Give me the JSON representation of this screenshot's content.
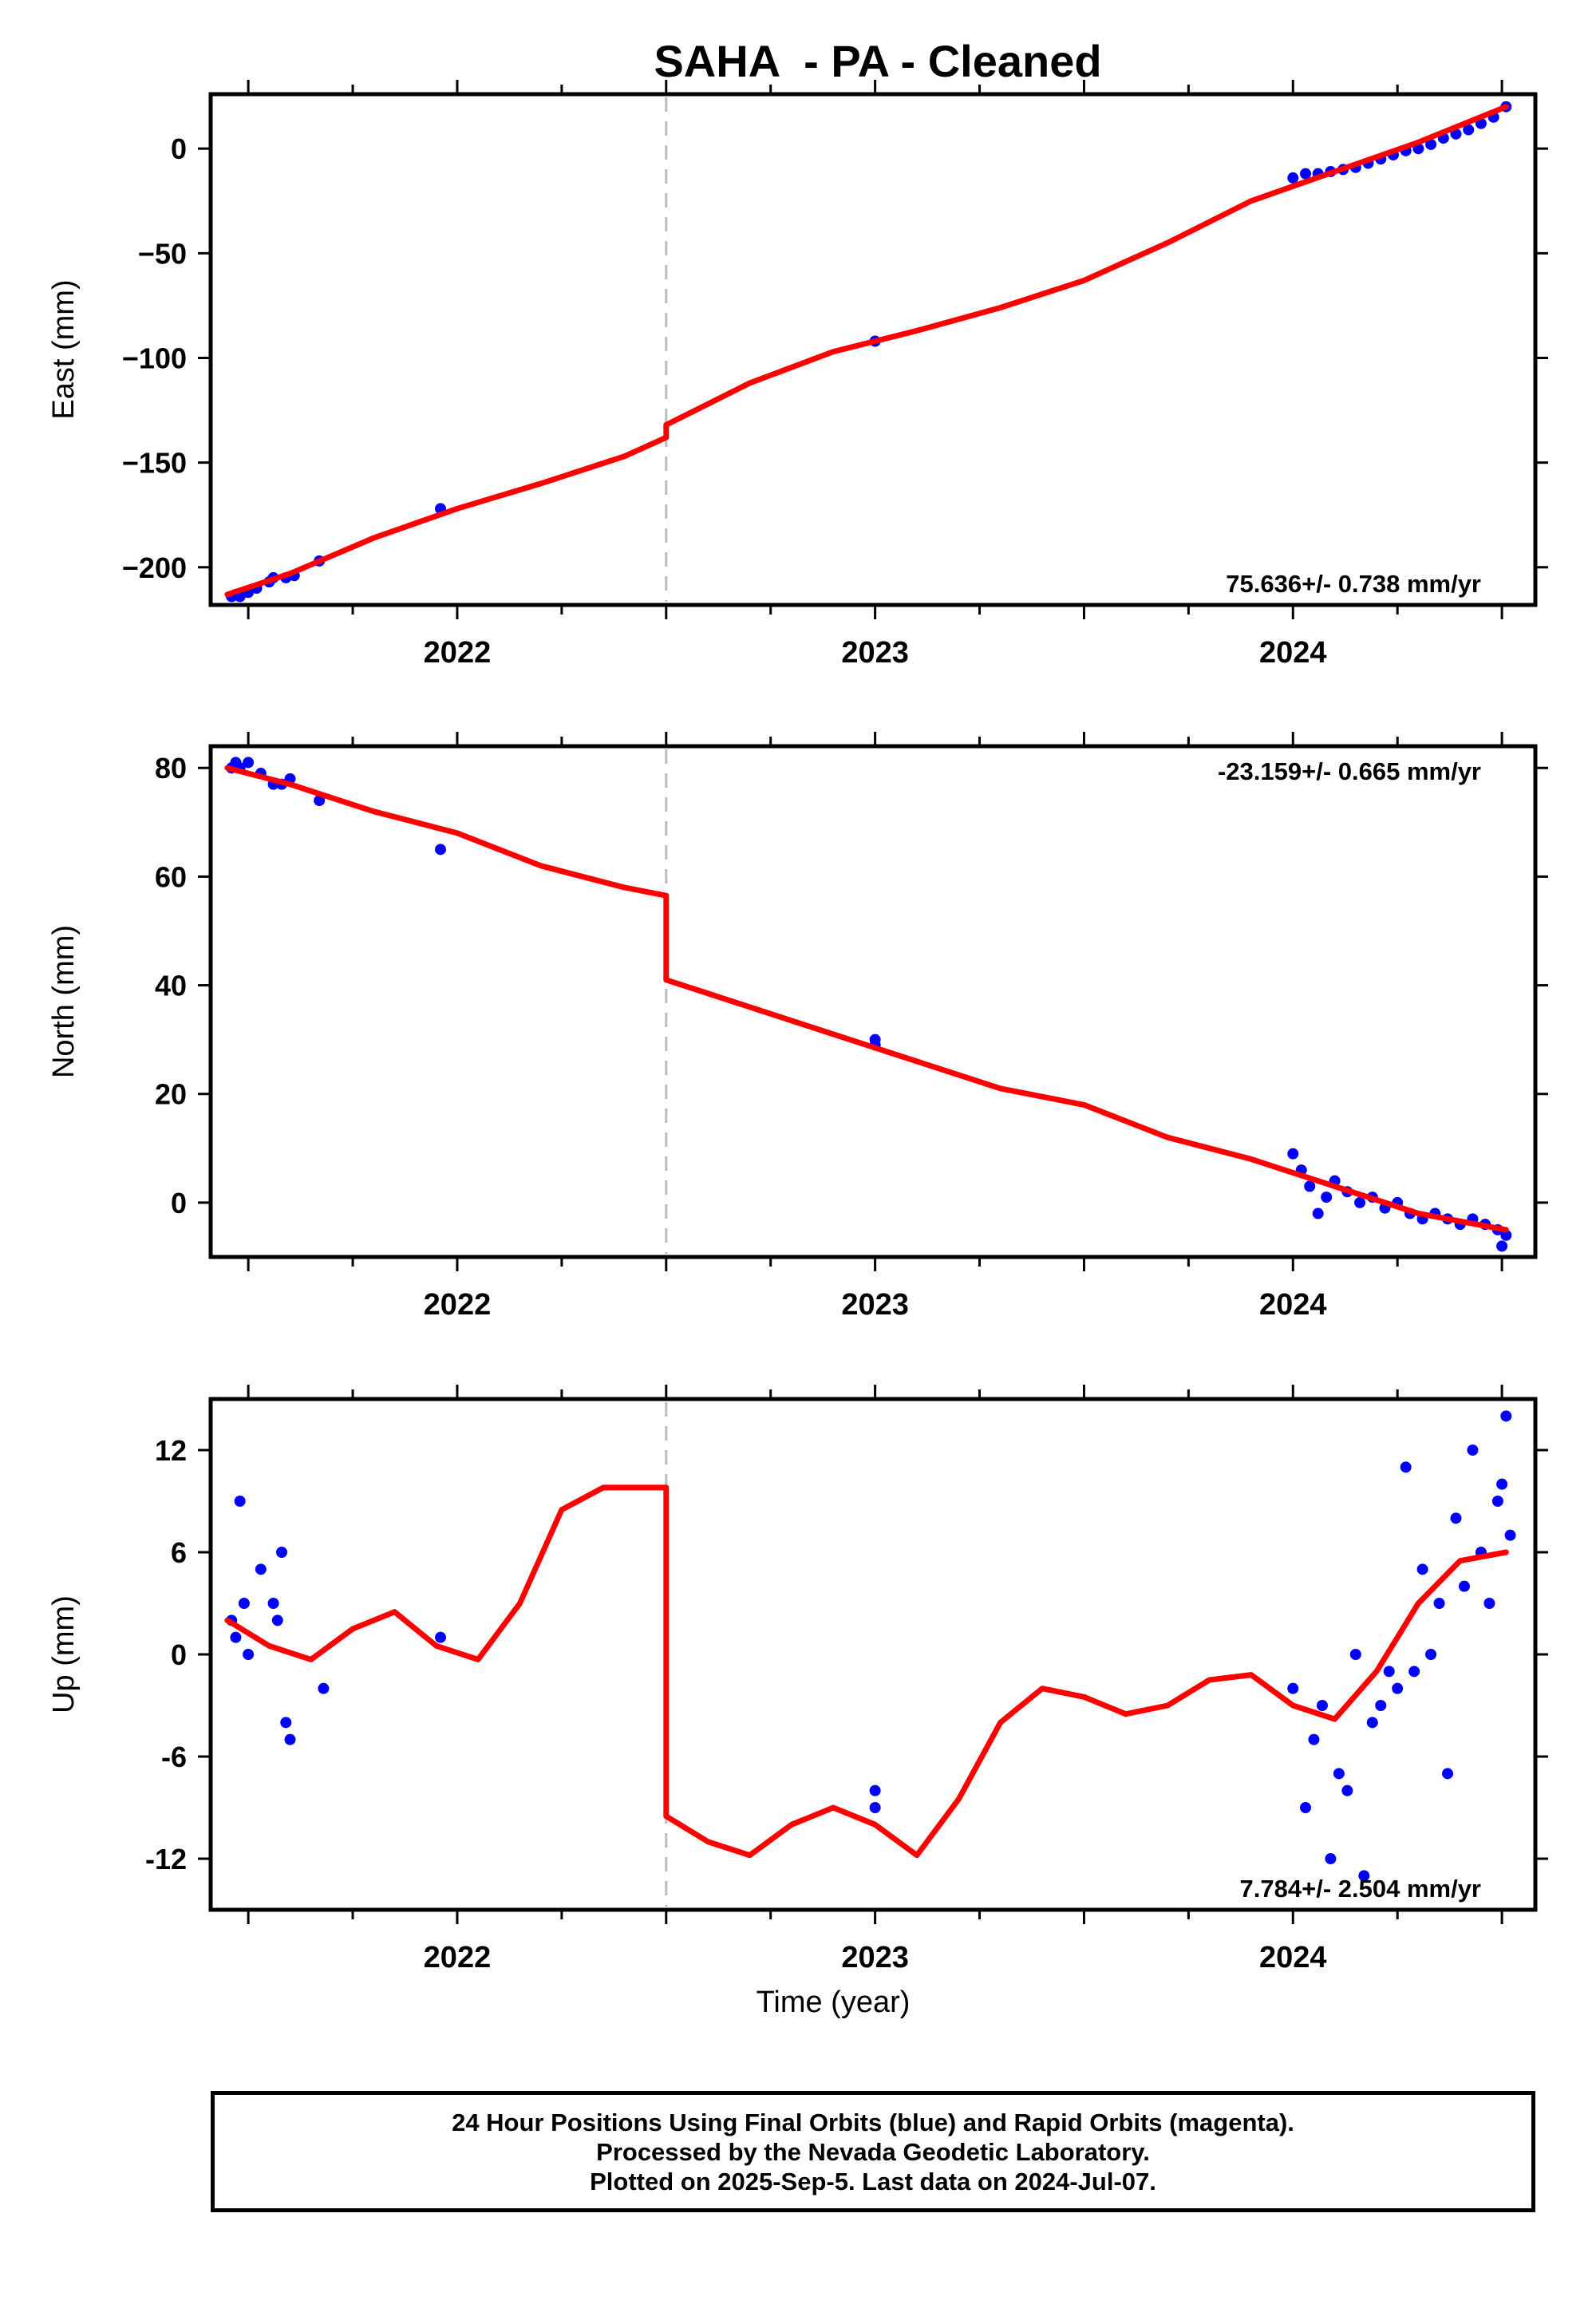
{
  "title": "SAHA  - PA - Cleaned",
  "colors": {
    "final_orbits": "#0000ff",
    "model_fit": "#ff0000",
    "break_line": "#bbbbbb"
  },
  "footer": {
    "line1": "24 Hour Positions Using Final Orbits (blue) and Rapid Orbits (magenta).",
    "line2": "Processed by the Nevada Geodetic Laboratory.",
    "line3": "Plotted on 2025-Sep-5. Last data on 2024-Jul-07."
  },
  "chart_data": [
    {
      "type": "scatter",
      "ylabel": "East (mm)",
      "xlabel": "",
      "xlim": [
        2021.41,
        2024.58
      ],
      "ylim": [
        -218,
        26
      ],
      "x_ticks": [
        2022,
        2023,
        2024
      ],
      "y_ticks": [
        0,
        -50,
        -100,
        -150,
        -200
      ],
      "y_tick_labels": [
        "0",
        "−50",
        "−100",
        "−150",
        "−200"
      ],
      "rate_label": "75.636+/- 0.738 mm/yr",
      "rate_position": "bottom-right",
      "break_x": 2022.5,
      "series": [
        {
          "style": "points",
          "x": [
            2021.46,
            2021.47,
            2021.48,
            2021.5,
            2021.52,
            2021.55,
            2021.56,
            2021.59,
            2021.61,
            2021.67,
            2021.96,
            2023.0,
            2024.0,
            2024.03,
            2024.06,
            2024.09,
            2024.12,
            2024.15,
            2024.18,
            2024.21,
            2024.24,
            2024.27,
            2024.3,
            2024.33,
            2024.36,
            2024.39,
            2024.42,
            2024.45,
            2024.48,
            2024.51
          ],
          "y": [
            -214,
            -213,
            -214,
            -212,
            -210,
            -207,
            -205,
            -205,
            -204,
            -197,
            -172,
            -92,
            -14,
            -12,
            -12,
            -11,
            -10,
            -9,
            -7,
            -5,
            -3,
            -1,
            0,
            2,
            5,
            7,
            9,
            12,
            15,
            20
          ]
        },
        {
          "style": "line",
          "x": [
            2021.45,
            2021.6,
            2021.8,
            2022.0,
            2022.2,
            2022.4,
            2022.5,
            2022.5,
            2022.7,
            2022.9,
            2023.1,
            2023.3,
            2023.5,
            2023.7,
            2023.9,
            2024.1,
            2024.3,
            2024.51
          ],
          "y": [
            -213,
            -203,
            -186,
            -172,
            -160,
            -147,
            -138,
            -132,
            -112,
            -97,
            -87,
            -76,
            -63,
            -45,
            -25,
            -11,
            3,
            20
          ]
        }
      ]
    },
    {
      "type": "scatter",
      "ylabel": "North (mm)",
      "xlabel": "",
      "xlim": [
        2021.41,
        2024.58
      ],
      "ylim": [
        -10,
        84
      ],
      "x_ticks": [
        2022,
        2023,
        2024
      ],
      "y_ticks": [
        80,
        60,
        40,
        20,
        0
      ],
      "y_tick_labels": [
        "80",
        "60",
        "40",
        "20",
        "0"
      ],
      "rate_label": "-23.159+/- 0.665 mm/yr",
      "rate_position": "top-right",
      "break_x": 2022.5,
      "series": [
        {
          "style": "points",
          "x": [
            2021.46,
            2021.47,
            2021.48,
            2021.5,
            2021.53,
            2021.56,
            2021.58,
            2021.6,
            2021.67,
            2021.96,
            2023.0,
            2023.0,
            2024.0,
            2024.02,
            2024.04,
            2024.06,
            2024.08,
            2024.1,
            2024.13,
            2024.16,
            2024.19,
            2024.22,
            2024.25,
            2024.28,
            2024.31,
            2024.34,
            2024.37,
            2024.4,
            2024.43,
            2024.46,
            2024.49,
            2024.51,
            2024.5
          ],
          "y": [
            80,
            81,
            80,
            81,
            79,
            77,
            77,
            78,
            74,
            65,
            30,
            29,
            9,
            6,
            3,
            -2,
            1,
            4,
            2,
            0,
            1,
            -1,
            0,
            -2,
            -3,
            -2,
            -3,
            -4,
            -3,
            -4,
            -5,
            -6,
            -8
          ]
        },
        {
          "style": "line",
          "x": [
            2021.45,
            2021.6,
            2021.8,
            2022.0,
            2022.2,
            2022.4,
            2022.5,
            2022.5,
            2022.7,
            2022.9,
            2023.1,
            2023.3,
            2023.5,
            2023.7,
            2023.9,
            2024.1,
            2024.3,
            2024.51
          ],
          "y": [
            80,
            77,
            72,
            68,
            62,
            58,
            56.5,
            41,
            36,
            31,
            26,
            21,
            18,
            12,
            8,
            3,
            -2,
            -5
          ]
        }
      ]
    },
    {
      "type": "scatter",
      "ylabel": "Up (mm)",
      "xlabel": "Time (year)",
      "xlim": [
        2021.41,
        2024.58
      ],
      "ylim": [
        -15,
        15
      ],
      "x_ticks": [
        2022,
        2023,
        2024
      ],
      "y_ticks": [
        12,
        6,
        0,
        -6,
        -12
      ],
      "y_tick_labels": [
        "12",
        "6",
        "0",
        "-6",
        "-12"
      ],
      "rate_label": "7.784+/- 2.504 mm/yr",
      "rate_position": "bottom-right",
      "break_x": 2022.5,
      "series": [
        {
          "style": "points",
          "x": [
            2021.46,
            2021.47,
            2021.48,
            2021.49,
            2021.5,
            2021.53,
            2021.56,
            2021.57,
            2021.58,
            2021.59,
            2021.6,
            2021.68,
            2021.96,
            2023.0,
            2023.0,
            2024.0,
            2024.03,
            2024.05,
            2024.07,
            2024.09,
            2024.11,
            2024.13,
            2024.15,
            2024.17,
            2024.19,
            2024.21,
            2024.23,
            2024.25,
            2024.27,
            2024.29,
            2024.31,
            2024.33,
            2024.35,
            2024.37,
            2024.39,
            2024.41,
            2024.43,
            2024.45,
            2024.47,
            2024.49,
            2024.51,
            2024.5,
            2024.52
          ],
          "y": [
            2,
            1,
            9,
            3,
            0,
            5,
            3,
            2,
            6,
            -4,
            -5,
            -2,
            1,
            -8,
            -9,
            -2,
            -9,
            -5,
            -3,
            -12,
            -7,
            -8,
            0,
            -13,
            -4,
            -3,
            -1,
            -2,
            11,
            -1,
            5,
            0,
            3,
            -7,
            8,
            4,
            12,
            6,
            3,
            9,
            14,
            10,
            7
          ]
        },
        {
          "style": "line",
          "x": [
            2021.45,
            2021.55,
            2021.65,
            2021.75,
            2021.85,
            2021.95,
            2022.05,
            2022.15,
            2022.25,
            2022.35,
            2022.45,
            2022.5,
            2022.5,
            2022.6,
            2022.7,
            2022.8,
            2022.9,
            2023.0,
            2023.1,
            2023.2,
            2023.3,
            2023.4,
            2023.5,
            2023.6,
            2023.7,
            2023.8,
            2023.9,
            2024.0,
            2024.1,
            2024.2,
            2024.3,
            2024.4,
            2024.51
          ],
          "y": [
            2,
            0.5,
            -0.3,
            1.5,
            2.5,
            0.5,
            -0.3,
            3,
            8.5,
            9.8,
            9.8,
            9.8,
            -9.5,
            -11,
            -11.8,
            -10,
            -9,
            -10,
            -11.8,
            -8.5,
            -4,
            -2,
            -2.5,
            -3.5,
            -3,
            -1.5,
            -1.2,
            -3,
            -3.8,
            -1,
            3,
            5.5,
            6
          ]
        }
      ]
    }
  ]
}
